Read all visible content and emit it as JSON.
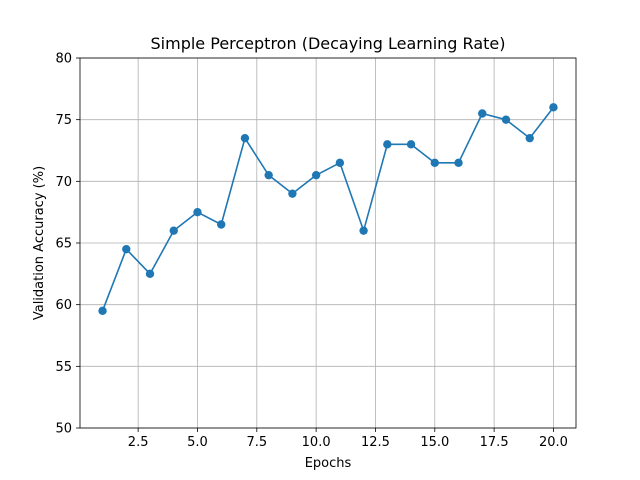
{
  "chart_data": {
    "type": "line",
    "title": "Simple Perceptron (Decaying Learning Rate)",
    "xlabel": "Epochs",
    "ylabel": "Validation Accuracy (%)",
    "xlim": [
      0.05,
      20.95
    ],
    "ylim": [
      50,
      80
    ],
    "xticks": [
      2.5,
      5.0,
      7.5,
      10.0,
      12.5,
      15.0,
      17.5,
      20.0
    ],
    "xtick_labels": [
      "2.5",
      "5.0",
      "7.5",
      "10.0",
      "12.5",
      "15.0",
      "17.5",
      "20.0"
    ],
    "yticks": [
      50,
      55,
      60,
      65,
      70,
      75,
      80
    ],
    "ytick_labels": [
      "50",
      "55",
      "60",
      "65",
      "70",
      "75",
      "80"
    ],
    "grid": true,
    "series": [
      {
        "color": "#1f77b4",
        "marker": "circle",
        "x": [
          1,
          2,
          3,
          4,
          5,
          6,
          7,
          8,
          9,
          10,
          11,
          12,
          13,
          14,
          15,
          16,
          17,
          18,
          19,
          20
        ],
        "y": [
          59.5,
          64.5,
          62.5,
          66.0,
          67.5,
          66.5,
          73.5,
          70.5,
          69.0,
          70.5,
          71.5,
          66.0,
          73.0,
          73.0,
          71.5,
          71.5,
          75.5,
          75.0,
          73.5,
          76.0
        ]
      }
    ]
  }
}
